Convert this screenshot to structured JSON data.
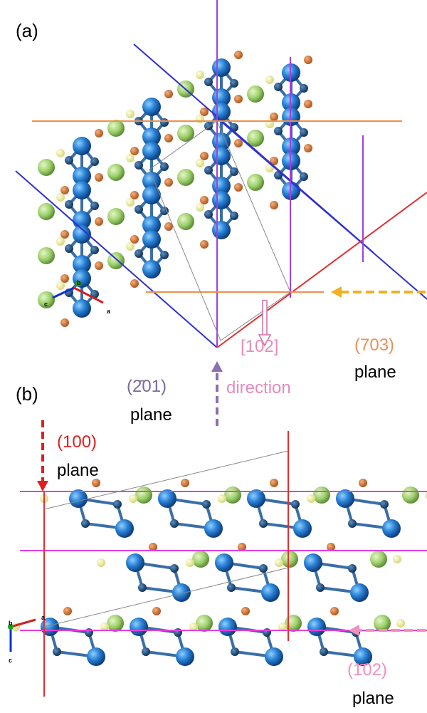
{
  "panel_a": {
    "label": "(a)",
    "axes": {
      "a": "a",
      "b": "b",
      "c": "c"
    }
  },
  "panel_b": {
    "label": "(b)",
    "axes": {
      "a": "a",
      "b": "b",
      "c": "c"
    }
  },
  "annotations": {
    "plane_703": {
      "name": "(703)",
      "word": "plane"
    },
    "direction_102": {
      "name": "[102]",
      "word": "direction"
    },
    "plane_201": {
      "name": "(2̄01)",
      "word": "plane"
    },
    "plane_100": {
      "name": "(100)",
      "word": "plane"
    },
    "plane_102": {
      "name": "(1̄02)",
      "word": "plane"
    }
  }
}
